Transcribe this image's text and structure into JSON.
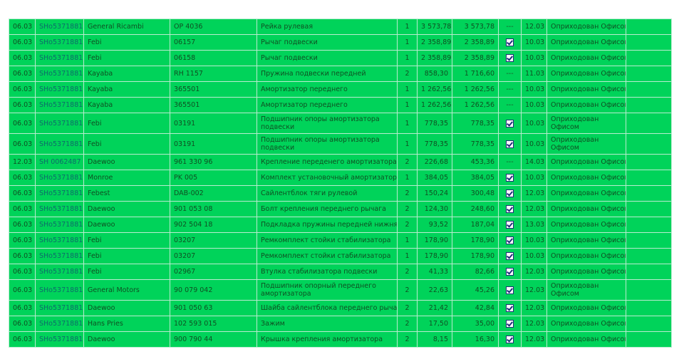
{
  "table": {
    "rows": [
      {
        "date": "06.03",
        "doc": "SHo5371881",
        "brand": "General Ricambi",
        "article": "OP 4036",
        "name": "Рейка рулевая",
        "qty": "1",
        "price": "3 573,78",
        "sum": "3 573,78",
        "checked": false,
        "mark": "---",
        "date2": "12.03",
        "status": "Оприходован Офисом"
      },
      {
        "date": "06.03",
        "doc": "SHo5371881",
        "brand": "Febi",
        "article": "06157",
        "name": "Рычаг подвески",
        "qty": "1",
        "price": "2 358,89",
        "sum": "2 358,89",
        "checked": true,
        "mark": "",
        "date2": "10.03",
        "status": "Оприходован Офисом"
      },
      {
        "date": "06.03",
        "doc": "SHo5371881",
        "brand": "Febi",
        "article": "06158",
        "name": "Рычаг подвески",
        "qty": "1",
        "price": "2 358,89",
        "sum": "2 358,89",
        "checked": true,
        "mark": "",
        "date2": "10.03",
        "status": "Оприходован Офисом"
      },
      {
        "date": "06.03",
        "doc": "SHo5371881",
        "brand": "Kayaba",
        "article": "RH 1157",
        "name": "Пружина подвески передней",
        "qty": "2",
        "price": "858,30",
        "sum": "1 716,60",
        "checked": false,
        "mark": "---",
        "date2": "11.03",
        "status": "Оприходован Офисом"
      },
      {
        "date": "06.03",
        "doc": "SHo5371881",
        "brand": "Kayaba",
        "article": "365501",
        "name": "Амортизатор переднего",
        "qty": "1",
        "price": "1 262,56",
        "sum": "1 262,56",
        "checked": false,
        "mark": "---",
        "date2": "10.03",
        "status": "Оприходован Офисом"
      },
      {
        "date": "06.03",
        "doc": "SHo5371881",
        "brand": "Kayaba",
        "article": "365501",
        "name": "Амортизатор переднего",
        "qty": "1",
        "price": "1 262,56",
        "sum": "1 262,56",
        "checked": false,
        "mark": "---",
        "date2": "10.03",
        "status": "Оприходован Офисом"
      },
      {
        "date": "06.03",
        "doc": "SHo5371881",
        "brand": "Febi",
        "article": "03191",
        "name": "Подшипник опоры амортизатора подвески",
        "qty": "1",
        "price": "778,35",
        "sum": "778,35",
        "checked": true,
        "mark": "",
        "date2": "10.03",
        "status": "Оприходован Офисом",
        "tall": true
      },
      {
        "date": "06.03",
        "doc": "SHo5371881",
        "brand": "Febi",
        "article": "03191",
        "name": "Подшипник опоры амортизатора подвески",
        "qty": "1",
        "price": "778,35",
        "sum": "778,35",
        "checked": true,
        "mark": "",
        "date2": "10.03",
        "status": "Оприходован Офисом",
        "tall": true
      },
      {
        "date": "12.03",
        "doc": "SH 0062487",
        "brand": "Daewoo",
        "article": "961 330 96",
        "name": "Крепление переденего амортизатора",
        "qty": "2",
        "price": "226,68",
        "sum": "453,36",
        "checked": false,
        "mark": "---",
        "date2": "14.03",
        "status": "Оприходован Офисом"
      },
      {
        "date": "06.03",
        "doc": "SHo5371881",
        "brand": "Monroe",
        "article": "PK 005",
        "name": "Комплект установочный амортизатора",
        "qty": "1",
        "price": "384,05",
        "sum": "384,05",
        "checked": true,
        "mark": "",
        "date2": "10.03",
        "status": "Оприходован Офисом"
      },
      {
        "date": "06.03",
        "doc": "SHo5371881",
        "brand": "Febest",
        "article": "DAB-002",
        "name": "Сайлентблок тяги рулевой",
        "qty": "2",
        "price": "150,24",
        "sum": "300,48",
        "checked": true,
        "mark": "",
        "date2": "12.03",
        "status": "Оприходован Офисом"
      },
      {
        "date": "06.03",
        "doc": "SHo5371881",
        "brand": "Daewoo",
        "article": "901 053 08",
        "name": "Болт крепления переднего рычага",
        "qty": "2",
        "price": "124,30",
        "sum": "248,60",
        "checked": true,
        "mark": "",
        "date2": "12.03",
        "status": "Оприходован Офисом"
      },
      {
        "date": "06.03",
        "doc": "SHo5371881",
        "brand": "Daewoo",
        "article": "902 504 18",
        "name": "Подкладка пружины передней нижняя",
        "qty": "2",
        "price": "93,52",
        "sum": "187,04",
        "checked": true,
        "mark": "",
        "date2": "13.03",
        "status": "Оприходован Офисом"
      },
      {
        "date": "06.03",
        "doc": "SHo5371881",
        "brand": "Febi",
        "article": "03207",
        "name": "Ремкомплект стойки стабилизатора",
        "qty": "1",
        "price": "178,90",
        "sum": "178,90",
        "checked": true,
        "mark": "",
        "date2": "10.03",
        "status": "Оприходован Офисом"
      },
      {
        "date": "06.03",
        "doc": "SHo5371881",
        "brand": "Febi",
        "article": "03207",
        "name": "Ремкомплект стойки стабилизатора",
        "qty": "1",
        "price": "178,90",
        "sum": "178,90",
        "checked": true,
        "mark": "",
        "date2": "10.03",
        "status": "Оприходован Офисом"
      },
      {
        "date": "06.03",
        "doc": "SHo5371881",
        "brand": "Febi",
        "article": "02967",
        "name": "Втулка стабилизатора подвески",
        "qty": "2",
        "price": "41,33",
        "sum": "82,66",
        "checked": true,
        "mark": "",
        "date2": "12.03",
        "status": "Оприходован Офисом"
      },
      {
        "date": "06.03",
        "doc": "SHo5371881",
        "brand": "General Motors",
        "article": "90 079 042",
        "name": "Подшипник опорный переднего амортизатора",
        "qty": "2",
        "price": "22,63",
        "sum": "45,26",
        "checked": true,
        "mark": "",
        "date2": "12.03",
        "status": "Оприходован Офисом",
        "tall": true
      },
      {
        "date": "06.03",
        "doc": "SHo5371881",
        "brand": "Daewoo",
        "article": "901 050 63",
        "name": "Шайба сайлентблока переднего рычага",
        "qty": "2",
        "price": "21,42",
        "sum": "42,84",
        "checked": true,
        "mark": "",
        "date2": "12.03",
        "status": "Оприходован Офисом"
      },
      {
        "date": "06.03",
        "doc": "SHo5371881",
        "brand": "Hans Pries",
        "article": "102 593 015",
        "name": "Зажим",
        "qty": "2",
        "price": "17,50",
        "sum": "35,00",
        "checked": true,
        "mark": "",
        "date2": "12.03",
        "status": "Оприходован Офисом"
      },
      {
        "date": "06.03",
        "doc": "SHo5371881",
        "brand": "Daewoo",
        "article": "900 790 44",
        "name": "Крышка крепления амортизатора",
        "qty": "2",
        "price": "8,15",
        "sum": "16,30",
        "checked": true,
        "mark": "",
        "date2": "12.03",
        "status": "Оприходован Офисом"
      }
    ]
  },
  "colors": {
    "background": "#00d35a",
    "border": "#b9ecd0",
    "text": "#0f4f22",
    "doc_link": "#0e6b6a"
  }
}
